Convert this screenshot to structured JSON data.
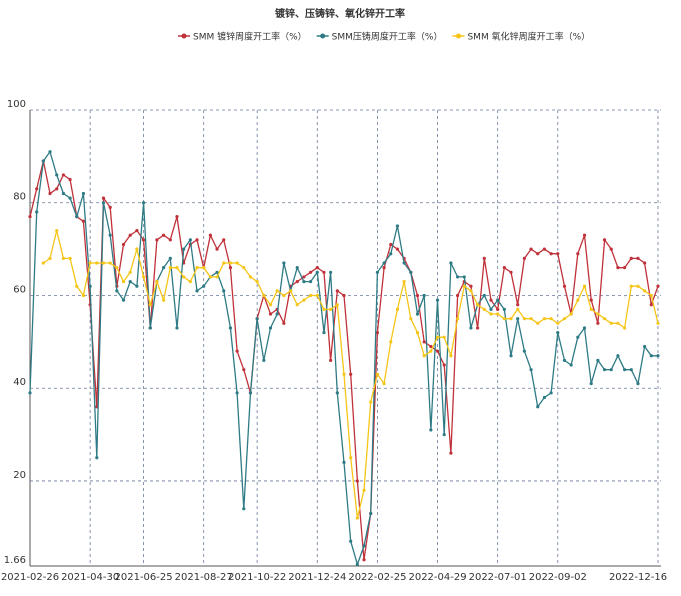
{
  "chart_data": {
    "type": "line",
    "title": "镀锌、压铸锌、氧化锌开工率",
    "categories": [
      "2021-02-26",
      null,
      null,
      null,
      null,
      null,
      null,
      null,
      null,
      "2021-04-30",
      null,
      null,
      null,
      null,
      null,
      null,
      null,
      "2021-06-25",
      null,
      null,
      null,
      null,
      null,
      null,
      null,
      null,
      "2021-08-27",
      null,
      null,
      null,
      null,
      null,
      null,
      null,
      "2021-10-22",
      null,
      null,
      null,
      null,
      null,
      null,
      null,
      null,
      "2021-12-24",
      null,
      null,
      null,
      null,
      null,
      null,
      null,
      null,
      "2022-02-25",
      null,
      null,
      null,
      null,
      null,
      null,
      null,
      null,
      "2022-04-29",
      null,
      null,
      null,
      null,
      null,
      null,
      null,
      null,
      "2022-07-01",
      null,
      null,
      null,
      null,
      null,
      null,
      null,
      null,
      "2022-09-02",
      null,
      null,
      null,
      null,
      null,
      null,
      null,
      null,
      null,
      null,
      null,
      null,
      null,
      null,
      "2022-12-16"
    ],
    "series": [
      {
        "name": "SMM 镀锌周度开工率（%）",
        "color": "#c0313a",
        "values": [
          77,
          83,
          89,
          82,
          83,
          86,
          85,
          77,
          76,
          58,
          36,
          81,
          79,
          62,
          71,
          73,
          74,
          72,
          53,
          72,
          73,
          72,
          77,
          67,
          71,
          72,
          66,
          73,
          70,
          72,
          66,
          48,
          44,
          39,
          55,
          60,
          56,
          57,
          54,
          62,
          63,
          64,
          65,
          66,
          65,
          46,
          61,
          60,
          43,
          20,
          3,
          13,
          52,
          66,
          71,
          70,
          68,
          65,
          60,
          50,
          49,
          48,
          45,
          26,
          60,
          63,
          62,
          53,
          68,
          59,
          57,
          66,
          65,
          58,
          68,
          70,
          69,
          70,
          69,
          69,
          62,
          56,
          69,
          73,
          59,
          54,
          72,
          70,
          66,
          66,
          68,
          68,
          67,
          58,
          62
        ]
      },
      {
        "name": "SMM压铸周度开工率（%）",
        "color": "#2e7b85",
        "values": [
          39,
          78,
          89,
          91,
          86,
          82,
          81,
          77,
          82,
          62,
          25,
          80,
          73,
          61,
          59,
          63,
          62,
          80,
          53,
          63,
          66,
          68,
          53,
          70,
          72,
          61,
          62,
          64,
          65,
          61,
          53,
          39,
          14,
          39,
          55,
          46,
          53,
          56,
          67,
          61,
          66,
          63,
          63,
          65,
          52,
          65,
          39,
          24,
          7,
          2,
          6,
          13,
          65,
          67,
          69,
          75,
          67,
          65,
          56,
          60,
          31,
          59,
          30,
          67,
          64,
          64,
          53,
          58,
          60,
          57,
          59,
          57,
          47,
          55,
          48,
          44,
          36,
          38,
          39,
          52,
          46,
          45,
          51,
          53,
          41,
          46,
          44,
          44,
          47,
          44,
          44,
          41,
          49,
          47,
          47
        ]
      },
      {
        "name": "SMM 氧化锌周度开工率（%）",
        "color": "#f5c518",
        "values": [
          null,
          null,
          67,
          68,
          74,
          68,
          68,
          62,
          60,
          67,
          67,
          67,
          67,
          66,
          63,
          65,
          70,
          64,
          58,
          63,
          59,
          66,
          66,
          64,
          63,
          66,
          66,
          64,
          64,
          67,
          67,
          67,
          66,
          64,
          63,
          60,
          58,
          61,
          60,
          61,
          58,
          59,
          60,
          60,
          57,
          57,
          58,
          43,
          25,
          12,
          18,
          37,
          43,
          41,
          50,
          57,
          63,
          55,
          52,
          47,
          48,
          51,
          51,
          47,
          55,
          62,
          61,
          58,
          57,
          56,
          56,
          55,
          55,
          57,
          55,
          55,
          54,
          55,
          55,
          54,
          55,
          56,
          59,
          62,
          57,
          56,
          55,
          54,
          54,
          53,
          62,
          62,
          61,
          60,
          54
        ]
      }
    ],
    "ylim": [
      1.66,
      100
    ],
    "yticks": [
      1.66,
      20,
      40,
      60,
      80,
      100
    ],
    "grid": true
  }
}
